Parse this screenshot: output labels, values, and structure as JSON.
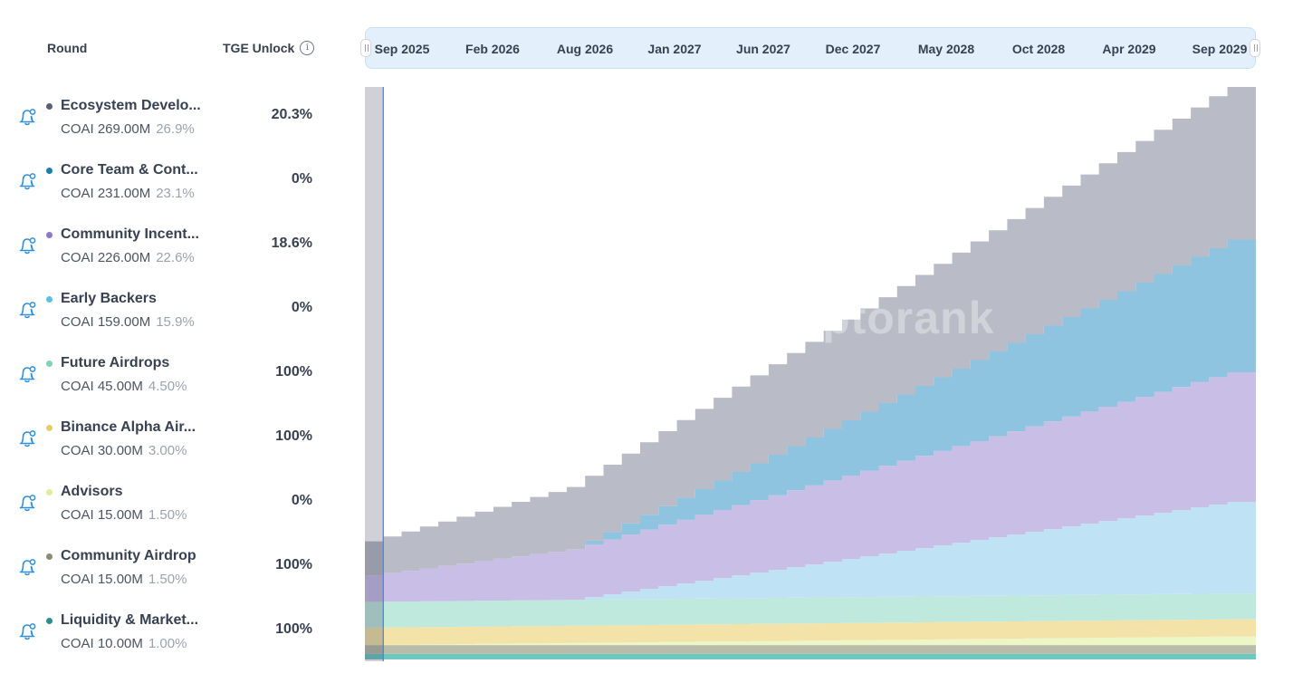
{
  "header": {
    "round": "Round",
    "tge_unlock": "TGE Unlock",
    "info_glyph": "i"
  },
  "timeline": {
    "labels": [
      "Sep 2025",
      "Feb 2026",
      "Aug 2026",
      "Jan 2027",
      "Jun 2027",
      "Dec 2027",
      "May 2028",
      "Oct 2028",
      "Apr 2029",
      "Sep 2029"
    ]
  },
  "rounds": [
    {
      "name": "Ecosystem Develo...",
      "amount": "COAI 269.00M",
      "pct": "26.9%",
      "tge": "20.3%",
      "color": "#5b5f76"
    },
    {
      "name": "Core Team & Cont...",
      "amount": "COAI 231.00M",
      "pct": "23.1%",
      "tge": "0%",
      "color": "#1a7fa8"
    },
    {
      "name": "Community Incent...",
      "amount": "COAI 226.00M",
      "pct": "22.6%",
      "tge": "18.6%",
      "color": "#8a78c9"
    },
    {
      "name": "Early Backers",
      "amount": "COAI 159.00M",
      "pct": "15.9%",
      "tge": "0%",
      "color": "#5bbfe8"
    },
    {
      "name": "Future Airdrops",
      "amount": "COAI 45.00M",
      "pct": "4.50%",
      "tge": "100%",
      "color": "#7ed3b2"
    },
    {
      "name": "Binance Alpha Air...",
      "amount": "COAI 30.00M",
      "pct": "3.00%",
      "tge": "100%",
      "color": "#e6cc6a"
    },
    {
      "name": "Advisors",
      "amount": "COAI 15.00M",
      "pct": "1.50%",
      "tge": "0%",
      "color": "#dcef9a"
    },
    {
      "name": "Community Airdrop",
      "amount": "COAI 15.00M",
      "pct": "1.50%",
      "tge": "100%",
      "color": "#8a8f74"
    },
    {
      "name": "Liquidity & Market...",
      "amount": "COAI 10.00M",
      "pct": "1.00%",
      "tge": "100%",
      "color": "#2a8f8a"
    }
  ],
  "chart_data": {
    "type": "area",
    "stacked": true,
    "x_unit": "month",
    "x_start": "Sep 2025",
    "x_end": "Sep 2029",
    "months": 48,
    "ylim": [
      0,
      1000
    ],
    "y_unit": "M COAI",
    "series": [
      {
        "name": "Liquidity & Market...",
        "color": "#6fc7c2",
        "tge_value": 10,
        "total": 10,
        "cliff_months": 0,
        "vest_months": 0,
        "start_month": 0
      },
      {
        "name": "Community Airdrop",
        "color": "#b9bca8",
        "tge_value": 15,
        "total": 15,
        "cliff_months": 0,
        "vest_months": 0,
        "start_month": 0
      },
      {
        "name": "Advisors",
        "color": "#ecf6c6",
        "tge_value": 0,
        "total": 15,
        "cliff_months": 0,
        "vest_months": 48,
        "start_month": 0
      },
      {
        "name": "Binance Alpha Air...",
        "color": "#f3e3a8",
        "tge_value": 30,
        "total": 30,
        "cliff_months": 0,
        "vest_months": 0,
        "start_month": 0
      },
      {
        "name": "Future Airdrops",
        "color": "#bfe9dd",
        "tge_value": 45,
        "total": 45,
        "cliff_months": 0,
        "vest_months": 0,
        "start_month": 0
      },
      {
        "name": "Early Backers",
        "color": "#bfe3f5",
        "tge_value": 0,
        "total": 159,
        "cliff_months": 12,
        "vest_months": 48,
        "start_month": 12
      },
      {
        "name": "Community Incent...",
        "color": "#c9bfe6",
        "tge_value": 42,
        "total": 226,
        "cliff_months": 0,
        "vest_months": 48,
        "start_month": 0
      },
      {
        "name": "Core Team & Cont...",
        "color": "#8fc4e0",
        "tge_value": 0,
        "total": 231,
        "cliff_months": 12,
        "vest_months": 48,
        "start_month": 12
      },
      {
        "name": "Ecosystem Develo...",
        "color": "#b9bcc6",
        "tge_value": 55,
        "total": 269,
        "cliff_months": 0,
        "vest_months": 48,
        "start_month": 0
      }
    ]
  },
  "watermark": "cryptorank"
}
